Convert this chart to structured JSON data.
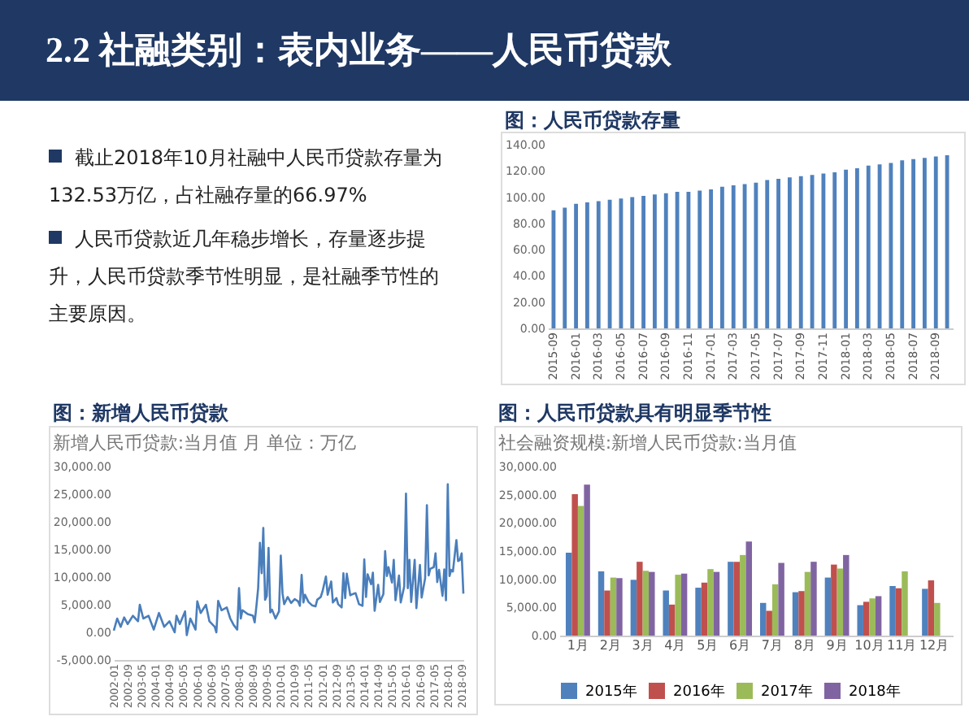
{
  "chart_data": [
    {
      "type": "other",
      "title": "2.2 社融类别：表内业务——人民币贷款",
      "annotations": [
        "截止2018年10月社融中人民币贷款存量为132.53万亿，占社融存量的66.97%",
        "人民币贷款近几年稳步增长，存量逐步提升，人民币贷款季节性明显，是社融季节性的主要原因。"
      ]
    },
    {
      "type": "bar",
      "title": "图：人民币贷款存量",
      "categories": [
        "2015-09",
        null,
        "2016-01",
        null,
        "2016-03",
        null,
        "2016-05",
        null,
        "2016-07",
        null,
        "2016-09",
        null,
        "2016-11",
        null,
        "2017-01",
        null,
        "2017-03",
        null,
        "2017-05",
        null,
        "2017-07",
        null,
        "2017-09",
        null,
        "2017-11",
        null,
        "2018-01",
        null,
        "2018-03",
        null,
        "2018-05",
        null,
        "2018-07",
        null,
        "2018-09",
        null
      ],
      "values": [
        90,
        92,
        95,
        96,
        97,
        98,
        99,
        100,
        101,
        102,
        103,
        104,
        104,
        105,
        106,
        108,
        109,
        110,
        111,
        113,
        114,
        115,
        116,
        117,
        118,
        119,
        121,
        122,
        124,
        125,
        126,
        128,
        129,
        130,
        131,
        132
      ],
      "color": "#4f81bd",
      "ylim": [
        0,
        140
      ],
      "yticks": [
        {
          "value": 0,
          "label": "0.00"
        },
        {
          "value": 20,
          "label": "20.00"
        },
        {
          "value": 40,
          "label": "40.00"
        },
        {
          "value": 60,
          "label": "60.00"
        },
        {
          "value": 80,
          "label": "80.00"
        },
        {
          "value": 100,
          "label": "100.00"
        },
        {
          "value": 120,
          "label": "120.00"
        },
        {
          "value": 140,
          "label": "140.00"
        }
      ]
    },
    {
      "type": "line",
      "title": "图：新增人民币贷款",
      "subtitle": "新增人民币贷款:当月值 月 单位：万亿",
      "x": [
        "2002-01",
        "2002-03",
        "2002-05",
        "2002-07",
        "2002-09",
        "2002-12",
        "2003-03",
        "2003-04",
        "2003-06",
        "2003-09",
        "2003-12",
        "2004-03",
        "2004-06",
        "2004-09",
        "2004-12",
        "2005-01",
        "2005-03",
        "2005-06",
        "2005-07",
        "2005-09",
        "2005-12",
        "2006-01",
        "2006-03",
        "2006-06",
        "2006-08",
        "2006-11",
        "2006-12",
        "2007-01",
        "2007-03",
        "2007-06",
        "2007-08",
        "2007-10",
        "2007-12",
        "2008-01",
        "2008-02",
        "2008-03",
        "2008-06",
        "2008-09",
        "2008-10",
        "2008-11",
        "2008-12",
        "2009-01",
        "2009-02",
        "2009-03",
        "2009-04",
        "2009-05",
        "2009-06",
        "2009-07",
        "2009-08",
        "2009-10",
        "2009-12",
        "2010-01",
        "2010-02",
        "2010-03",
        "2010-05",
        "2010-07",
        "2010-09",
        "2010-11",
        "2010-12",
        "2011-01",
        "2011-02",
        "2011-03",
        "2011-05",
        "2011-07",
        "2011-09",
        "2011-10",
        "2011-12",
        "2012-01",
        "2012-03",
        "2012-04",
        "2012-06",
        "2012-07",
        "2012-09",
        "2012-10",
        "2012-12",
        "2013-01",
        "2013-02",
        "2013-03",
        "2013-05",
        "2013-07",
        "2013-08",
        "2013-10",
        "2013-12",
        "2014-01",
        "2014-02",
        "2014-03",
        "2014-05",
        "2014-06",
        "2014-07",
        "2014-09",
        "2014-10",
        "2014-12",
        "2015-01",
        "2015-02",
        "2015-03",
        "2015-05",
        "2015-06",
        "2015-07",
        "2015-09",
        "2015-10",
        "2015-12",
        "2016-01",
        "2016-02",
        "2016-03",
        "2016-04",
        "2016-06",
        "2016-07",
        "2016-09",
        "2016-10",
        "2016-12",
        "2017-01",
        "2017-02",
        "2017-03",
        "2017-05",
        "2017-06",
        "2017-07",
        "2017-08",
        "2017-10",
        "2017-11",
        "2017-12",
        "2018-01",
        "2018-02",
        "2018-03",
        "2018-04",
        "2018-06",
        "2018-07",
        "2018-08",
        "2018-09",
        "2018-10"
      ],
      "series": [
        {
          "color": "#4a7ebb",
          "values": [
            300,
            2500,
            1000,
            2700,
            1500,
            3000,
            2000,
            5000,
            2500,
            3000,
            500,
            3500,
            1000,
            2000,
            0,
            3000,
            1500,
            3800,
            -500,
            2500,
            500,
            5600,
            3500,
            5000,
            2000,
            1000,
            0,
            5700,
            4000,
            4500,
            2500,
            1300,
            500,
            8000,
            2500,
            4000,
            3300,
            3000,
            1800,
            4800,
            8000,
            16200,
            10700,
            18900,
            5900,
            6600,
            15300,
            3600,
            4100,
            2500,
            3800,
            13900,
            7000,
            5100,
            6400,
            5300,
            6000,
            5600,
            4800,
            10400,
            5400,
            6800,
            5500,
            4900,
            4700,
            5900,
            6400,
            7400,
            10100,
            6800,
            9200,
            5400,
            6200,
            5100,
            4500,
            10700,
            6200,
            10600,
            6700,
            7000,
            7100,
            5100,
            4800,
            13200,
            6400,
            10500,
            8700,
            10800,
            3900,
            8600,
            5500,
            6900,
            14700,
            10200,
            11800,
            9000,
            13100,
            5800,
            10300,
            5400,
            8300,
            25100,
            8000,
            13100,
            5500,
            13100,
            4400,
            12200,
            6300,
            9800,
            23000,
            10300,
            11500,
            11800,
            14300,
            9100,
            11300,
            6600,
            11400,
            5800,
            26800,
            10200,
            11300,
            11000,
            16700,
            12900,
            13100,
            14300,
            7000
          ]
        }
      ],
      "xlim": [
        "2002-01",
        "2018-10"
      ],
      "xticks": [
        "2002-01",
        "2002-09",
        "2003-05",
        "2004-01",
        "2004-09",
        "2005-05",
        "2006-01",
        "2006-09",
        "2007-05",
        "2008-01",
        "2008-09",
        "2009-05",
        "2010-01",
        "2010-09",
        "2011-05",
        "2012-01",
        "2012-09",
        "2013-05",
        "2014-01",
        "2014-09",
        "2015-05",
        "2016-01",
        "2016-09",
        "2017-05",
        "2018-01",
        "2018-09"
      ],
      "ylim": [
        -5000,
        30000
      ],
      "yticks": [
        {
          "value": -5000,
          "label": "-5,000.00"
        },
        {
          "value": 0,
          "label": "0.00"
        },
        {
          "value": 5000,
          "label": "5,000.00"
        },
        {
          "value": 10000,
          "label": "10,000.00"
        },
        {
          "value": 15000,
          "label": "15,000.00"
        },
        {
          "value": 20000,
          "label": "20,000.00"
        },
        {
          "value": 25000,
          "label": "25,000.00"
        },
        {
          "value": 30000,
          "label": "30,000.00"
        }
      ]
    },
    {
      "type": "bar",
      "title": "图：人民币贷款具有明显季节性",
      "subtitle": "社会融资规模:新增人民币贷款:当月值",
      "categories": [
        "1月",
        "2月",
        "3月",
        "4月",
        "5月",
        "6月",
        "7月",
        "8月",
        "9月",
        "10月",
        "11月",
        "12月"
      ],
      "series": [
        {
          "name": "2015年",
          "color": "#4f81bd",
          "values": [
            14700,
            11400,
            9900,
            8000,
            8500,
            13100,
            5800,
            7700,
            10300,
            5400,
            8800,
            8300
          ]
        },
        {
          "name": "2016年",
          "color": "#c0504d",
          "values": [
            25100,
            8000,
            13100,
            5500,
            9400,
            13100,
            4400,
            7900,
            12600,
            6000,
            8400,
            9800
          ]
        },
        {
          "name": "2017年",
          "color": "#9bbb59",
          "values": [
            23000,
            10300,
            11500,
            10800,
            11800,
            14300,
            9100,
            11300,
            11900,
            6600,
            11400,
            5800
          ]
        },
        {
          "name": "2018年",
          "color": "#8064a2",
          "values": [
            26800,
            10200,
            11300,
            11000,
            11300,
            16700,
            12900,
            13100,
            14300,
            7000,
            null,
            null
          ]
        }
      ],
      "legend": "bottom",
      "ylim": [
        0,
        30000
      ],
      "yticks": [
        {
          "value": 0,
          "label": "0.00"
        },
        {
          "value": 5000,
          "label": "5,000.00"
        },
        {
          "value": 10000,
          "label": "10,000.00"
        },
        {
          "value": 15000,
          "label": "15,000.00"
        },
        {
          "value": 20000,
          "label": "20,000.00"
        },
        {
          "value": 25000,
          "label": "25,000.00"
        },
        {
          "value": 30000,
          "label": "30,000.00"
        }
      ]
    }
  ]
}
